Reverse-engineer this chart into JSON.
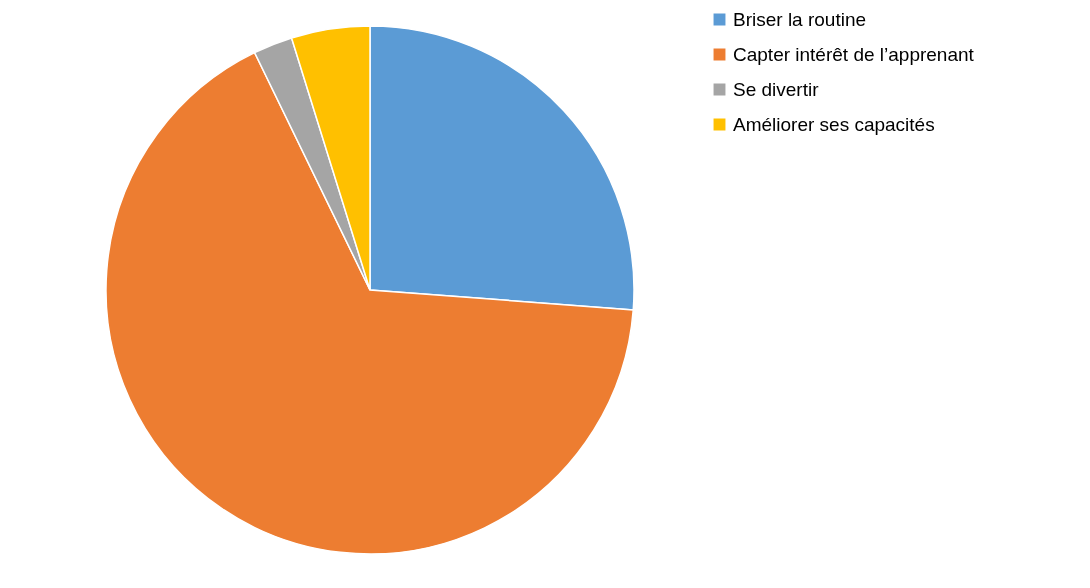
{
  "chart_data": {
    "type": "pie",
    "categories": [
      "Briser la routine",
      "Capter intérêt de l’apprenant",
      "Se divertir",
      "Améliorer ses capacités"
    ],
    "values": [
      26.2,
      66.6,
      2.4,
      4.8
    ],
    "colors": [
      "#5b9bd5",
      "#ed7d31",
      "#a5a5a5",
      "#ffc000"
    ],
    "legend": "right"
  }
}
